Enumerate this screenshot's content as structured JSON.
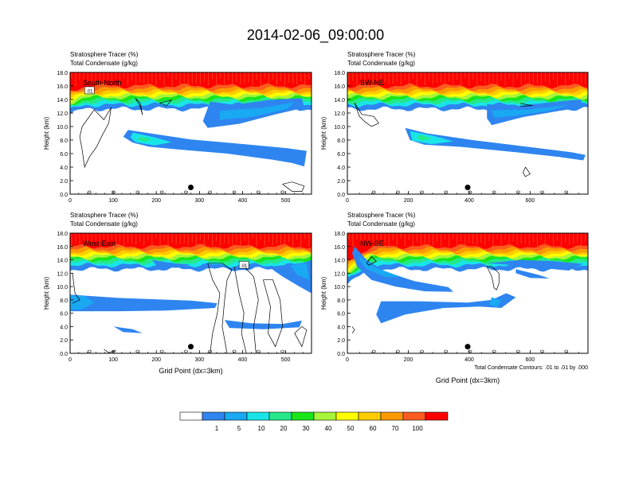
{
  "title": "2014-02-06_09:00:00",
  "palette": {
    "white": "#ffffff",
    "c1": "#2e85f0",
    "c5": "#19a8f2",
    "c10": "#19e5e8",
    "c20": "#24e88a",
    "c30": "#19e619",
    "c40": "#a6f53b",
    "c50": "#ffff00",
    "c60": "#ffcc00",
    "c70": "#ff9900",
    "c100": "#ff5a1f",
    "ctop": "#ff0000"
  },
  "colorbar": {
    "colors": [
      "#ffffff",
      "#2e85f0",
      "#19a8f2",
      "#19e5e8",
      "#24e88a",
      "#19e619",
      "#a6f53b",
      "#ffff00",
      "#ffcc00",
      "#ff9900",
      "#ff5a1f",
      "#ff0000"
    ],
    "labels": [
      "1",
      "5",
      "10",
      "20",
      "30",
      "40",
      "50",
      "60",
      "70",
      "100"
    ]
  },
  "contour_note": "Total Condensate Contours: .01 to .01 by .000",
  "chart_data": [
    {
      "type": "heatmap",
      "panel": "South-North",
      "title_line1": "Stratosphere Tracer   (%)",
      "title_line2": "Total Condensate   (g/kg)",
      "ylabel": "Height (km)",
      "xlabel": "",
      "ylim": [
        0,
        18
      ],
      "xlim": [
        0,
        560
      ],
      "yticks": [
        "0.0",
        "2.0",
        "4.0",
        "6.0",
        "8.0",
        "10.0",
        "12.0",
        "14.0",
        "16.0",
        "18.0"
      ],
      "xticks": [
        0,
        100,
        200,
        300,
        400,
        500
      ],
      "marker_x": 280,
      "contour_label": ".01",
      "grid": false
    },
    {
      "type": "heatmap",
      "panel": "SW-NE",
      "title_line1": "Stratosphere Tracer   (%)",
      "title_line2": "Total Condensate   (g/kg)",
      "ylabel": "Height (km)",
      "xlabel": "",
      "ylim": [
        0,
        18
      ],
      "xlim": [
        0,
        790
      ],
      "yticks": [
        "0.0",
        "2.0",
        "4.0",
        "6.0",
        "8.0",
        "10.0",
        "12.0",
        "14.0",
        "16.0",
        "18.0"
      ],
      "xticks": [
        0,
        200,
        400,
        600
      ],
      "marker_x": 395,
      "contour_label": "",
      "grid": false
    },
    {
      "type": "heatmap",
      "panel": "West-East",
      "title_line1": "Stratosphere Tracer   (%)",
      "title_line2": "Total Condensate   (g/kg)",
      "ylabel": "Height (km)",
      "xlabel": "Grid Point (dx=3km)",
      "ylim": [
        0,
        18
      ],
      "xlim": [
        0,
        560
      ],
      "yticks": [
        "0.0",
        "2.0",
        "4.0",
        "6.0",
        "8.0",
        "10.0",
        "12.0",
        "14.0",
        "16.0",
        "18.0"
      ],
      "xticks": [
        0,
        100,
        200,
        300,
        400,
        500
      ],
      "marker_x": 280,
      "contour_label": ".01",
      "grid": false
    },
    {
      "type": "heatmap",
      "panel": "NW-SE",
      "title_line1": "Stratosphere Tracer   (%)",
      "title_line2": "Total Condensate   (g/kg)",
      "ylabel": "Height (km)",
      "xlabel": "Grid Point (dx=3km)",
      "ylim": [
        0,
        18
      ],
      "xlim": [
        0,
        790
      ],
      "yticks": [
        "0.0",
        "2.0",
        "4.0",
        "6.0",
        "8.0",
        "10.0",
        "12.0",
        "14.0",
        "16.0",
        "18.0"
      ],
      "xticks": [
        0,
        200,
        400,
        600
      ],
      "marker_x": 395,
      "contour_label": "",
      "grid": false
    }
  ]
}
